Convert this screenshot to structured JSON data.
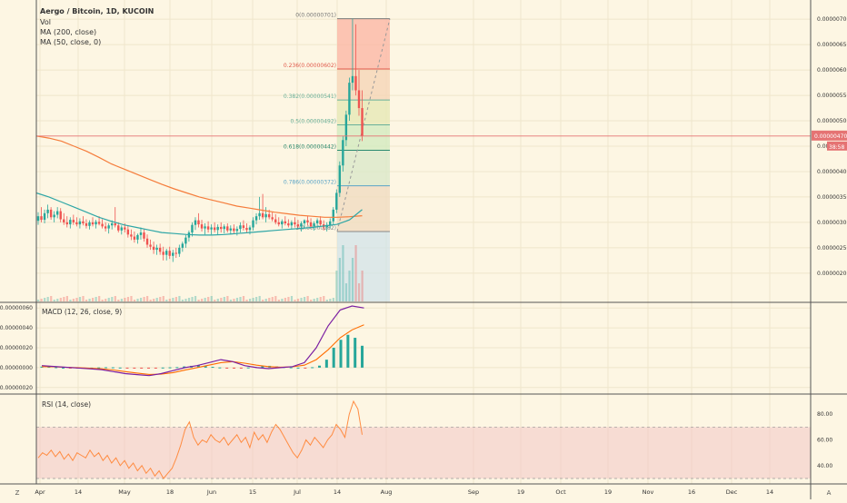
{
  "header": {
    "symbol": "Aergo / Bitcoin, 1D, KUCOIN",
    "indicators": [
      "Vol",
      "MA (200, close)",
      "MA (50, close, 0)"
    ]
  },
  "colors": {
    "background": "#fdf6e3",
    "up": "#26a69a",
    "down": "#ef5350",
    "ma200": "#f57c3b",
    "ma50": "#2ea6a6",
    "macd_line": "#7b1fa2",
    "signal_line": "#ff6d00",
    "rsi_line": "#ff8c42",
    "rsi_band": "#f3c6c6",
    "price_line": "#e57373"
  },
  "price_axis": {
    "ticks": [
      "0.00000700",
      "0.00000650",
      "0.00000600",
      "0.00000550",
      "0.00000500",
      "0.00000450",
      "0.00000400",
      "0.00000350",
      "0.00000300",
      "0.00000250",
      "0.00000200"
    ],
    "current_price": "0.00000470",
    "countdown": "38:58"
  },
  "macd_axis": {
    "title": "MACD (12, 26, close, 9)",
    "ticks": [
      "0.00000060",
      "0.00000040",
      "0.00000020",
      "0.00000000",
      "-0.00000020"
    ]
  },
  "rsi_axis": {
    "title": "RSI (14, close)",
    "ticks": [
      "80.00",
      "60.00",
      "40.00"
    ]
  },
  "time_axis": {
    "labels": [
      "Apr",
      "14",
      "May",
      "18",
      "Jun",
      "15",
      "Jul",
      "14",
      "Aug",
      "Sep",
      "19",
      "Oct",
      "19",
      "Nov",
      "16",
      "Dec",
      "14"
    ]
  },
  "corner_buttons": {
    "left": "Z",
    "right": "A"
  },
  "fib_levels": [
    {
      "label": "0(0.00000701)",
      "price": 7.01e-06
    },
    {
      "label": "0.236(0.00000602)",
      "price": 6.02e-06
    },
    {
      "label": "0.382(0.00000541)",
      "price": 5.41e-06
    },
    {
      "label": "0.5(0.00000492)",
      "price": 4.92e-06
    },
    {
      "label": "0.618(0.00000442)",
      "price": 4.42e-06
    },
    {
      "label": "0.786(0.00000372)",
      "price": 3.72e-06
    },
    {
      "label": "1(0.00000282)",
      "price": 2.82e-06
    }
  ],
  "chart_data": {
    "type": "candlestick",
    "x_start": "2019-04-01",
    "x_end_visible": "2019-12-31",
    "price_range": [
      1.8e-06,
      7.2e-06
    ],
    "candles": [
      [
        3.03e-06,
        3.2e-06,
        2.95e-06,
        3.12e-06
      ],
      [
        3.12e-06,
        3.3e-06,
        3e-06,
        3.05e-06
      ],
      [
        3.05e-06,
        3.25e-06,
        2.98e-06,
        3.18e-06
      ],
      [
        3.18e-06,
        3.35e-06,
        3.08e-06,
        3.25e-06
      ],
      [
        3.25e-06,
        3.3e-06,
        3.05e-06,
        3.1e-06
      ],
      [
        3.1e-06,
        3.22e-06,
        3e-06,
        3.15e-06
      ],
      [
        3.15e-06,
        3.3e-06,
        3.08e-06,
        3.22e-06
      ],
      [
        3.22e-06,
        3.28e-06,
        3e-06,
        3.06e-06
      ],
      [
        3.06e-06,
        3.18e-06,
        2.95e-06,
        3e-06
      ],
      [
        3e-06,
        3.12e-06,
        2.9e-06,
        2.96e-06
      ],
      [
        2.96e-06,
        3.1e-06,
        2.88e-06,
        3.05e-06
      ],
      [
        3.05e-06,
        3.15e-06,
        2.95e-06,
        3e-06
      ],
      [
        3e-06,
        3.1e-06,
        2.92e-06,
        2.96e-06
      ],
      [
        2.96e-06,
        3.08e-06,
        2.88e-06,
        3.02e-06
      ],
      [
        3.02e-06,
        3.12e-06,
        2.94e-06,
        2.98e-06
      ],
      [
        2.98e-06,
        3.06e-06,
        2.88e-06,
        2.93e-06
      ],
      [
        2.93e-06,
        3.04e-06,
        2.86e-06,
        3e-06
      ],
      [
        3e-06,
        3.1e-06,
        2.92e-06,
        2.96e-06
      ],
      [
        2.96e-06,
        3.05e-06,
        2.88e-06,
        3.01e-06
      ],
      [
        3.01e-06,
        3.12e-06,
        2.94e-06,
        2.97e-06
      ],
      [
        2.97e-06,
        3.06e-06,
        2.88e-06,
        2.92e-06
      ],
      [
        2.92e-06,
        3e-06,
        2.82e-06,
        2.88e-06
      ],
      [
        2.88e-06,
        2.98e-06,
        2.78e-06,
        2.94e-06
      ],
      [
        2.94e-06,
        3.04e-06,
        2.86e-06,
        2.98e-06
      ],
      [
        2.98e-06,
        3.3e-06,
        2.9e-06,
        2.94e-06
      ],
      [
        2.94e-06,
        3e-06,
        2.8e-06,
        2.84e-06
      ],
      [
        2.84e-06,
        2.94e-06,
        2.76e-06,
        2.9e-06
      ],
      [
        2.9e-06,
        2.98e-06,
        2.8e-06,
        2.86e-06
      ],
      [
        2.86e-06,
        2.94e-06,
        2.7e-06,
        2.76e-06
      ],
      [
        2.76e-06,
        2.86e-06,
        2.65e-06,
        2.72e-06
      ],
      [
        2.72e-06,
        2.82e-06,
        2.6e-06,
        2.66e-06
      ],
      [
        2.66e-06,
        2.78e-06,
        2.58e-06,
        2.75e-06
      ],
      [
        2.75e-06,
        2.9e-06,
        2.66e-06,
        2.8e-06
      ],
      [
        2.8e-06,
        2.86e-06,
        2.62e-06,
        2.68e-06
      ],
      [
        2.68e-06,
        2.76e-06,
        2.5e-06,
        2.56e-06
      ],
      [
        2.56e-06,
        2.66e-06,
        2.46e-06,
        2.52e-06
      ],
      [
        2.52e-06,
        2.62e-06,
        2.38e-06,
        2.46e-06
      ],
      [
        2.46e-06,
        2.56e-06,
        2.36e-06,
        2.5e-06
      ],
      [
        2.5e-06,
        2.58e-06,
        2.36e-06,
        2.42e-06
      ],
      [
        2.42e-06,
        2.52e-06,
        2.25e-06,
        2.36e-06
      ],
      [
        2.36e-06,
        2.48e-06,
        2.25e-06,
        2.44e-06
      ],
      [
        2.44e-06,
        2.52e-06,
        2.28e-06,
        2.34e-06
      ],
      [
        2.34e-06,
        2.46e-06,
        2.22e-06,
        2.4e-06
      ],
      [
        2.4e-06,
        2.5e-06,
        2.3e-06,
        2.38e-06
      ],
      [
        2.38e-06,
        2.56e-06,
        2.32e-06,
        2.5e-06
      ],
      [
        2.5e-06,
        2.62e-06,
        2.42e-06,
        2.58e-06
      ],
      [
        2.58e-06,
        2.75e-06,
        2.5e-06,
        2.7e-06
      ],
      [
        2.7e-06,
        2.84e-06,
        2.62e-06,
        2.8e-06
      ],
      [
        2.8e-06,
        3e-06,
        2.72e-06,
        2.95e-06
      ],
      [
        2.95e-06,
        3.1e-06,
        2.85e-06,
        3.04e-06
      ],
      [
        3.04e-06,
        3.18e-06,
        2.9e-06,
        2.96e-06
      ],
      [
        2.96e-06,
        3.05e-06,
        2.82e-06,
        2.88e-06
      ],
      [
        2.88e-06,
        2.98e-06,
        2.76e-06,
        2.92e-06
      ],
      [
        2.92e-06,
        3.02e-06,
        2.8e-06,
        2.86e-06
      ],
      [
        2.86e-06,
        2.96e-06,
        2.76e-06,
        2.9e-06
      ],
      [
        2.9e-06,
        3e-06,
        2.8e-06,
        2.85e-06
      ],
      [
        2.85e-06,
        2.96e-06,
        2.76e-06,
        2.91e-06
      ],
      [
        2.91e-06,
        3e-06,
        2.8e-06,
        2.87e-06
      ],
      [
        2.87e-06,
        2.96e-06,
        2.78e-06,
        2.92e-06
      ],
      [
        2.92e-06,
        2.98e-06,
        2.8e-06,
        2.84e-06
      ],
      [
        2.84e-06,
        2.94e-06,
        2.76e-06,
        2.88e-06
      ],
      [
        2.88e-06,
        2.96e-06,
        2.78e-06,
        2.83e-06
      ],
      [
        2.83e-06,
        2.92e-06,
        2.74e-06,
        2.87e-06
      ],
      [
        2.87e-06,
        3e-06,
        2.8e-06,
        2.94e-06
      ],
      [
        2.94e-06,
        3.04e-06,
        2.84e-06,
        2.89e-06
      ],
      [
        2.89e-06,
        2.98e-06,
        2.8e-06,
        2.85e-06
      ],
      [
        2.85e-06,
        2.94e-06,
        2.76e-06,
        2.9e-06
      ],
      [
        2.9e-06,
        3.1e-06,
        2.84e-06,
        3.04e-06
      ],
      [
        3.04e-06,
        3.18e-06,
        2.96e-06,
        3.12e-06
      ],
      [
        3.12e-06,
        3.5e-06,
        3.05e-06,
        3.18e-06
      ],
      [
        3.18e-06,
        3.56e-06,
        3.06e-06,
        3.1e-06
      ],
      [
        3.1e-06,
        3.3e-06,
        3e-06,
        3.16e-06
      ],
      [
        3.16e-06,
        3.25e-06,
        3.06e-06,
        3.1e-06
      ],
      [
        3.1e-06,
        3.2e-06,
        3.02e-06,
        3.06e-06
      ],
      [
        3.06e-06,
        3.16e-06,
        2.96e-06,
        3e-06
      ],
      [
        3e-06,
        3.1e-06,
        2.92e-06,
        2.96e-06
      ],
      [
        2.96e-06,
        3.06e-06,
        2.88e-06,
        3.02e-06
      ],
      [
        3.02e-06,
        3.12e-06,
        2.94e-06,
        2.98e-06
      ],
      [
        2.98e-06,
        3.06e-06,
        2.9e-06,
        2.94e-06
      ],
      [
        2.94e-06,
        3.04e-06,
        2.86e-06,
        3e-06
      ],
      [
        3e-06,
        3.1e-06,
        2.9e-06,
        2.96e-06
      ],
      [
        2.96e-06,
        3.05e-06,
        2.88e-06,
        2.92e-06
      ],
      [
        2.92e-06,
        3.02e-06,
        2.82e-06,
        2.98e-06
      ],
      [
        2.98e-06,
        3.06e-06,
        2.88e-06,
        3.04e-06
      ],
      [
        3.04e-06,
        3.12e-06,
        2.94e-06,
        3e-06
      ],
      [
        3e-06,
        3.08e-06,
        2.88e-06,
        2.92e-06
      ],
      [
        2.92e-06,
        3.02e-06,
        2.84e-06,
        2.98e-06
      ],
      [
        2.98e-06,
        3.08e-06,
        2.9e-06,
        3.04e-06
      ],
      [
        3.04e-06,
        3.12e-06,
        2.92e-06,
        2.96e-06
      ],
      [
        2.96e-06,
        3.04e-06,
        2.84e-06,
        2.9e-06
      ],
      [
        2.9e-06,
        3e-06,
        2.82e-06,
        2.95e-06
      ],
      [
        2.95e-06,
        3.08e-06,
        2.88e-06,
        3.02e-06
      ],
      [
        3.02e-06,
        3.3e-06,
        2.96e-06,
        3.25e-06
      ],
      [
        3.25e-06,
        3.65e-06,
        3.18e-06,
        3.58e-06
      ],
      [
        3.58e-06,
        4.2e-06,
        3.5e-06,
        4.12e-06
      ],
      [
        4.12e-06,
        4.7e-06,
        4e-06,
        4.62e-06
      ],
      [
        4.62e-06,
        5.2e-06,
        4.5e-06,
        5.12e-06
      ],
      [
        5.12e-06,
        5.85e-06,
        5e-06,
        5.75e-06
      ],
      [
        5.75e-06,
        7.01e-06,
        5.6e-06,
        5.88e-06
      ],
      [
        5.88e-06,
        6.9e-06,
        5.5e-06,
        5.6e-06
      ],
      [
        5.6e-06,
        6e-06,
        5.1e-06,
        5.25e-06
      ],
      [
        5.25e-06,
        5.6e-06,
        4.6e-06,
        4.7e-06
      ]
    ],
    "ma200": [
      4.7e-06,
      4.66e-06,
      4.6e-06,
      4.5e-06,
      4.4e-06,
      4.28e-06,
      4.15e-06,
      4.05e-06,
      3.95e-06,
      3.85e-06,
      3.75e-06,
      3.66e-06,
      3.58e-06,
      3.5e-06,
      3.44e-06,
      3.38e-06,
      3.32e-06,
      3.28e-06,
      3.24e-06,
      3.2e-06,
      3.17e-06,
      3.14e-06,
      3.12e-06,
      3.1e-06,
      3.1e-06,
      3.11e-06,
      3.13e-06
    ],
    "ma50": [
      3.58e-06,
      3.5e-06,
      3.4e-06,
      3.3e-06,
      3.2e-06,
      3.1e-06,
      3.02e-06,
      2.95e-06,
      2.9e-06,
      2.85e-06,
      2.8e-06,
      2.78e-06,
      2.76e-06,
      2.75e-06,
      2.75e-06,
      2.76e-06,
      2.78e-06,
      2.8e-06,
      2.82e-06,
      2.84e-06,
      2.86e-06,
      2.88e-06,
      2.9e-06,
      2.93e-06,
      2.96e-06,
      3.05e-06,
      3.25e-06
    ],
    "macd": {
      "range": [
        -2.2e-07,
        6.2e-07
      ],
      "histogram": [
        1e-08,
        8e-09,
        4e-09,
        0,
        -4e-09,
        -6e-09,
        -3e-09,
        0,
        2e-09,
        4e-09,
        3e-09,
        1e-09,
        -2e-09,
        -4e-09,
        -5e-09,
        -4e-09,
        -2e-09,
        1e-09,
        3e-09,
        5e-09,
        1.2e-08,
        1.8e-08,
        2.2e-08,
        1.6e-08,
        8e-09,
        2e-09,
        -4e-09,
        -6e-09,
        -4e-09,
        2e-09,
        8e-09,
        1.6e-08,
        1.8e-08,
        1.2e-08,
        6e-09,
        3e-09,
        0,
        -2e-09,
        4e-09,
        2e-08,
        8e-08,
        2e-07,
        2.8e-07,
        3.3e-07,
        3e-07,
        2.2e-07
      ],
      "macd_line": [
        2e-08,
        1.2e-08,
        4e-09,
        -4e-09,
        -1.2e-08,
        -2e-08,
        -4e-08,
        -6e-08,
        -7e-08,
        -8e-08,
        -6e-08,
        -3e-08,
        0,
        2e-08,
        5e-08,
        8e-08,
        6e-08,
        2e-08,
        0,
        -1e-08,
        0,
        1e-08,
        5e-08,
        2e-07,
        4.2e-07,
        5.8e-07,
        6.2e-07,
        6e-07
      ],
      "signal_line": [
        1e-08,
        8e-09,
        4e-09,
        0,
        -6e-09,
        -1.2e-08,
        -2.4e-08,
        -4e-08,
        -5.5e-08,
        -6.8e-08,
        -6.6e-08,
        -5e-08,
        -2.5e-08,
        0,
        2.5e-08,
        5e-08,
        6e-08,
        4.5e-08,
        2.5e-08,
        1e-08,
        5e-09,
        8e-09,
        2.5e-08,
        8e-08,
        1.8e-07,
        3e-07,
        3.8e-07,
        4.3e-07
      ]
    },
    "rsi": {
      "range": [
        30,
        90
      ],
      "band": [
        30,
        70
      ],
      "values": [
        46,
        50,
        48,
        52,
        47,
        51,
        45,
        49,
        44,
        50,
        48,
        46,
        52,
        47,
        50,
        44,
        48,
        42,
        46,
        40,
        44,
        38,
        42,
        36,
        40,
        34,
        38,
        32,
        36,
        30,
        34,
        38,
        46,
        56,
        68,
        74,
        62,
        56,
        60,
        58,
        64,
        60,
        58,
        62,
        56,
        60,
        64,
        58,
        62,
        54,
        66,
        60,
        64,
        58,
        66,
        72,
        68,
        62,
        56,
        50,
        46,
        52,
        60,
        56,
        62,
        58,
        54,
        60,
        64,
        72,
        68,
        62,
        80,
        90,
        84,
        64
      ]
    }
  }
}
